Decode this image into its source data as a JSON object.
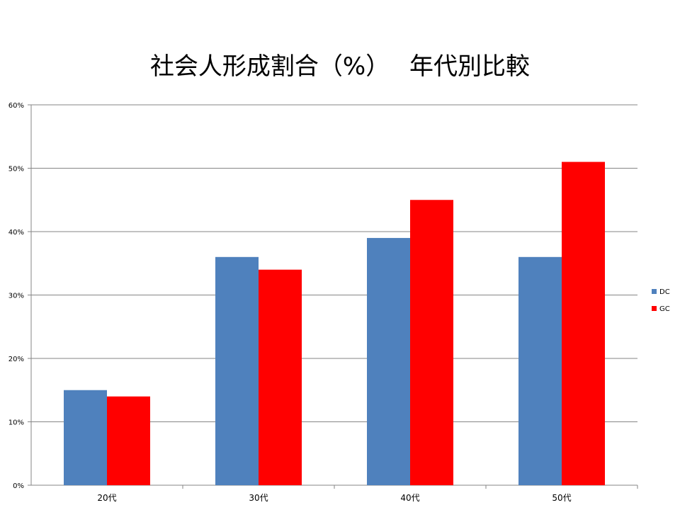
{
  "title": "社会人形成割合（%）　 年代別比較",
  "chart_data": {
    "type": "bar",
    "title": "社会人形成割合（%）　 年代別比較",
    "categories": [
      "20代",
      "30代",
      "40代",
      "50代"
    ],
    "series": [
      {
        "name": "DC",
        "values": [
          15,
          36,
          39,
          36
        ],
        "color": "#4f81bd"
      },
      {
        "name": "GC",
        "values": [
          14,
          34,
          45,
          51
        ],
        "color": "#ff0000"
      }
    ],
    "y_ticks": [
      "0%",
      "10%",
      "20%",
      "30%",
      "40%",
      "50%",
      "60%"
    ],
    "ylim": [
      0,
      60
    ],
    "unit": "%",
    "grid": true,
    "legend": "right"
  }
}
